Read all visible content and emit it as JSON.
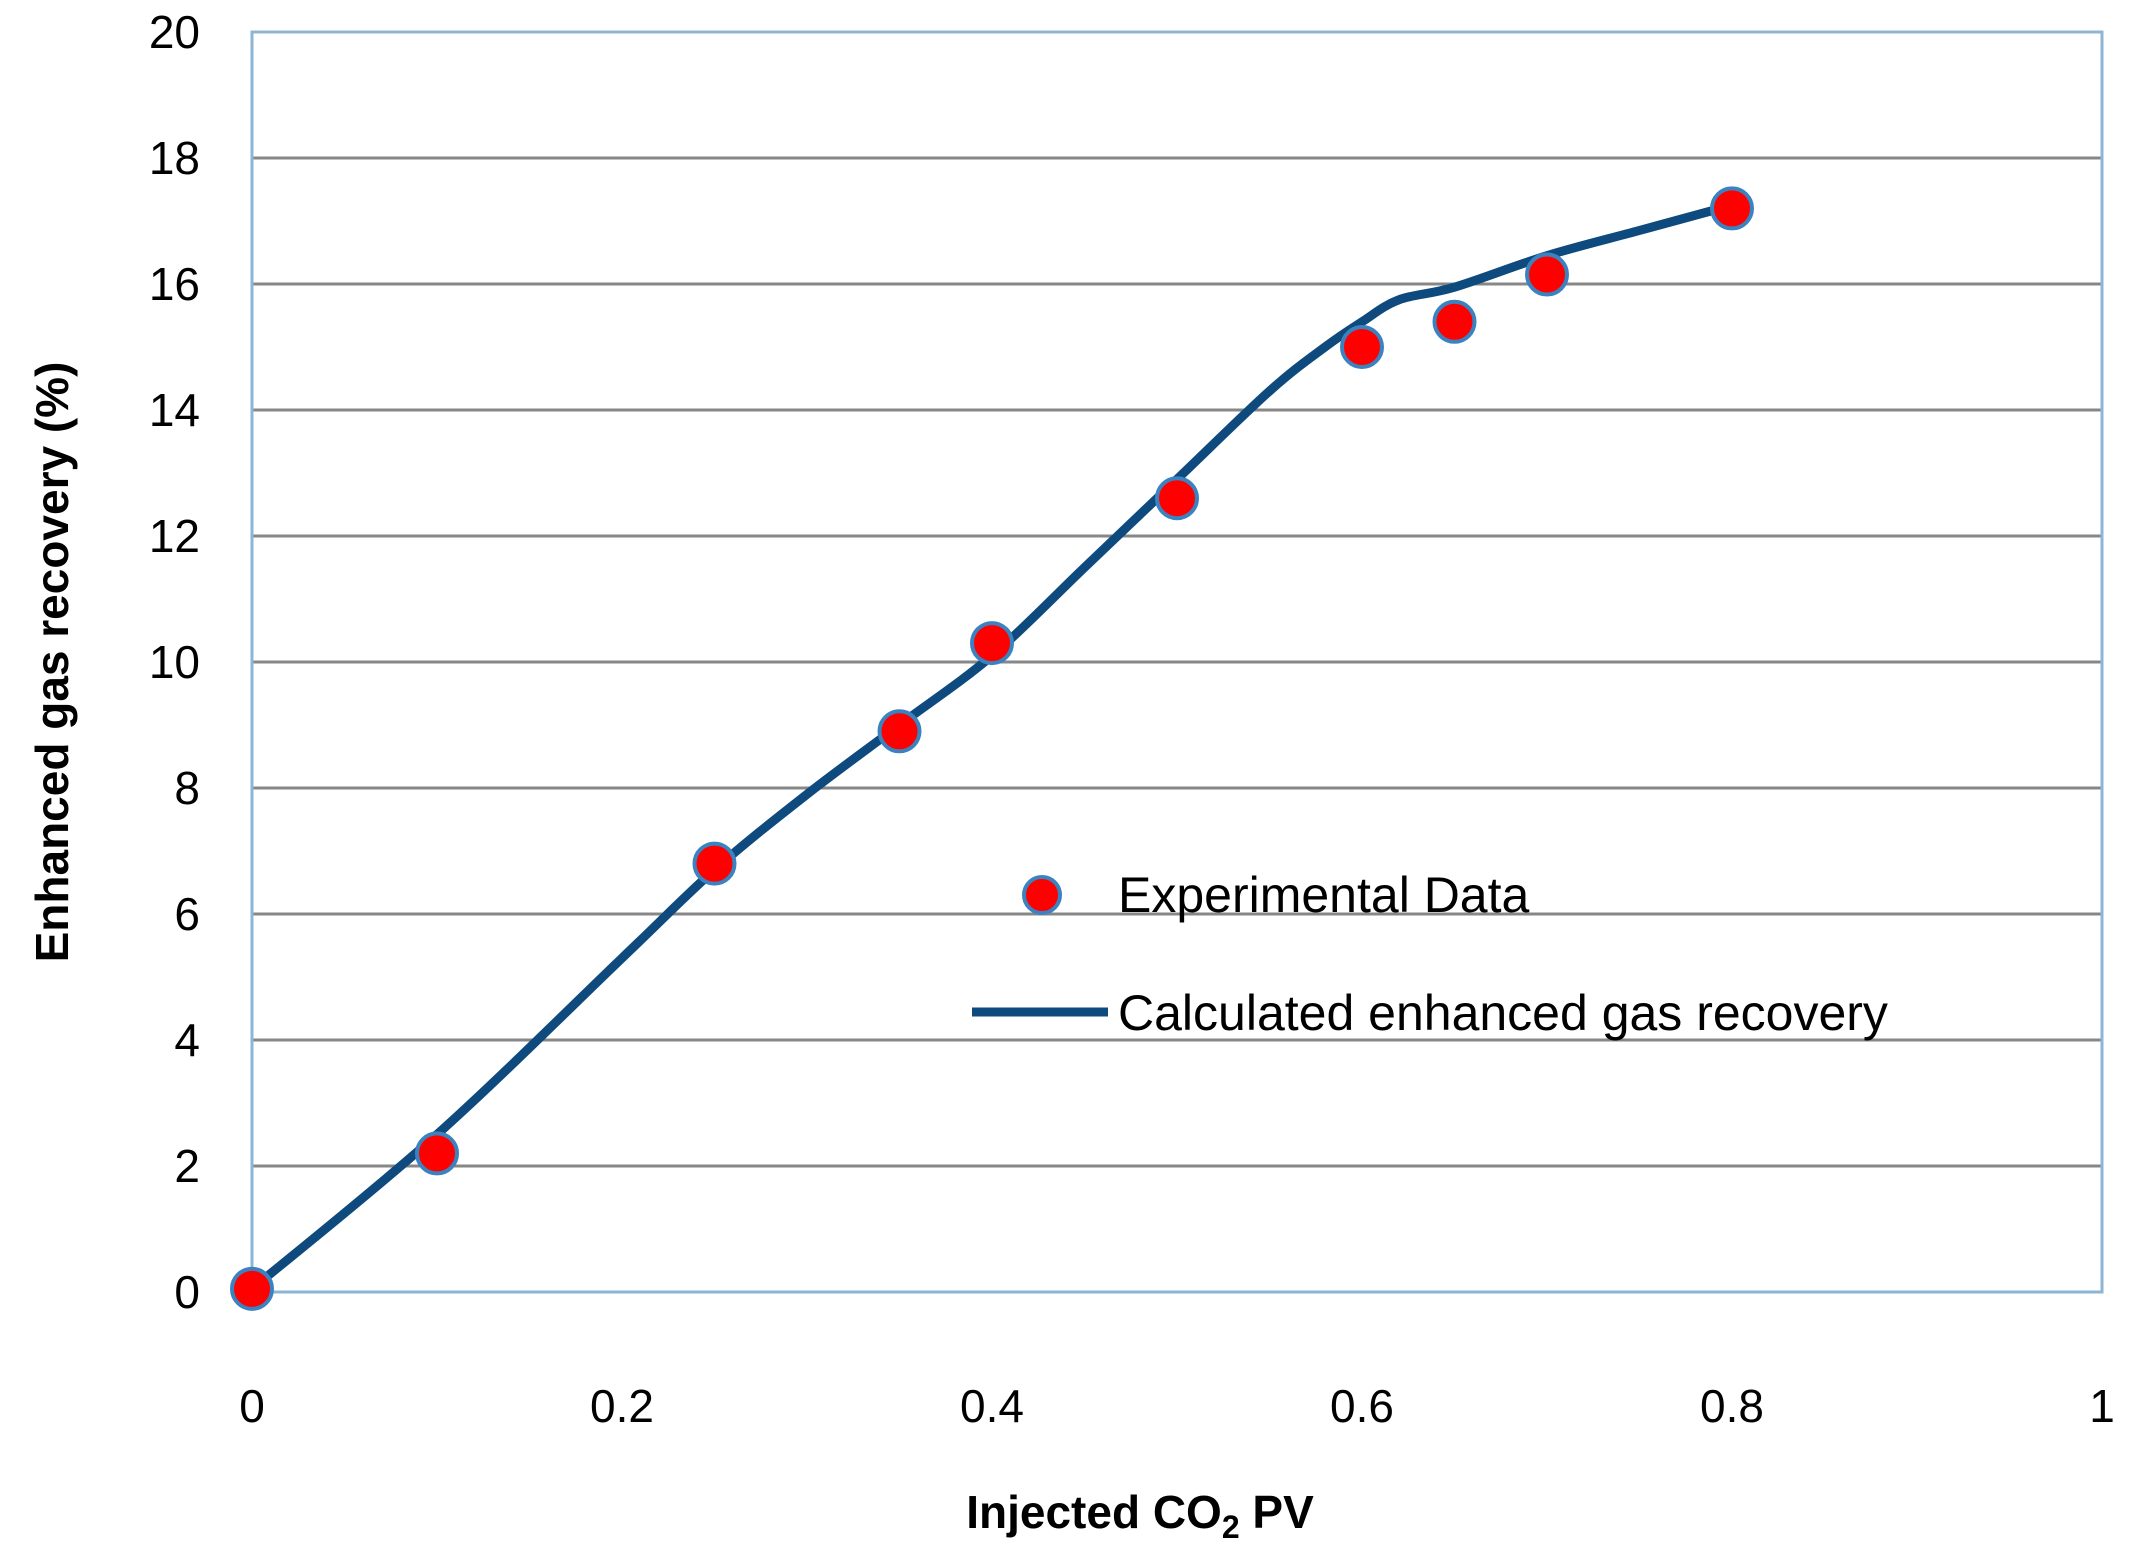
{
  "chart_data": {
    "type": "line",
    "title": "",
    "xlabel": "Injected CO",
    "xlabel_subscript": "2",
    "xlabel_suffix": " PV",
    "ylabel": "Enhanced gas recovery (%)",
    "xlim": [
      0,
      1
    ],
    "ylim": [
      0,
      20
    ],
    "x_ticks": [
      0,
      0.2,
      0.4,
      0.6,
      0.8,
      1
    ],
    "x_tick_labels": [
      "0",
      "0.2",
      "0.4",
      "0.6",
      "0.8",
      "1"
    ],
    "y_ticks": [
      0,
      2,
      4,
      6,
      8,
      10,
      12,
      14,
      16,
      18,
      20
    ],
    "y_tick_labels": [
      "0",
      "2",
      "4",
      "6",
      "8",
      "10",
      "12",
      "14",
      "16",
      "18",
      "20"
    ],
    "grid": "horizontal",
    "legend_position": "center-right",
    "series": [
      {
        "name": "Experimental Data",
        "kind": "scatter",
        "x": [
          0,
          0.1,
          0.25,
          0.35,
          0.4,
          0.5,
          0.6,
          0.65,
          0.7,
          0.8
        ],
        "y": [
          0.05,
          2.2,
          6.8,
          8.9,
          10.3,
          12.6,
          15.0,
          15.4,
          16.15,
          17.2
        ]
      },
      {
        "name": "Calculated enhanced gas recovery",
        "kind": "line",
        "x": [
          0,
          0.1,
          0.2,
          0.25,
          0.3,
          0.35,
          0.4,
          0.45,
          0.5,
          0.55,
          0.58,
          0.6,
          0.62,
          0.65,
          0.7,
          0.75,
          0.8
        ],
        "y": [
          0.05,
          2.5,
          5.3,
          6.7,
          7.9,
          9.0,
          10.1,
          11.5,
          12.9,
          14.3,
          15.0,
          15.4,
          15.75,
          15.95,
          16.45,
          16.85,
          17.25
        ]
      }
    ]
  },
  "colors": {
    "plot_border": "#8eb4d6",
    "gridline": "#878787",
    "line": "#0e4a7e",
    "marker_fill": "#ff0000",
    "marker_edge": "#3a83c0"
  }
}
